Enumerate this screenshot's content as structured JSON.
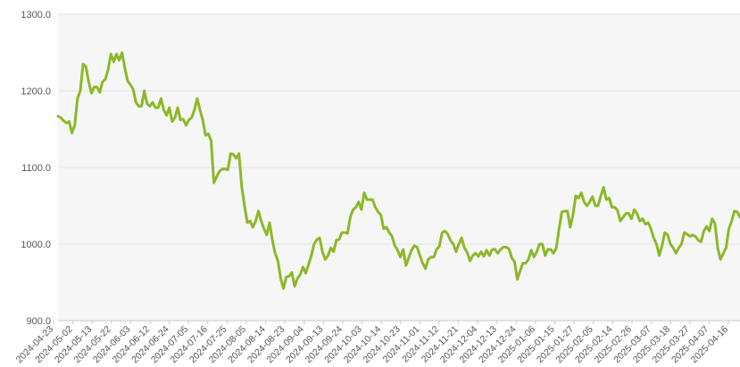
{
  "chart_data": {
    "type": "line",
    "title": "",
    "xlabel": "",
    "ylabel": "",
    "ylim": [
      900,
      1300
    ],
    "y_ticks": [
      "900.0",
      "1000.0",
      "1100.0",
      "1200.0",
      "1300.0"
    ],
    "grid": "horizontal",
    "legend": "none",
    "line_color": "#8cb829",
    "x_tick_labels": [
      "2024-04-23",
      "2024-05-02",
      "2024-05-13",
      "2024-05-22",
      "2024-06-03",
      "2024-06-12",
      "2024-06-24",
      "2024-07-05",
      "2024-07-16",
      "2024-07-25",
      "2024-08-05",
      "2024-08-14",
      "2024-08-23",
      "2024-09-04",
      "2024-09-13",
      "2024-09-24",
      "2024-10-03",
      "2024-10-14",
      "2024-10-23",
      "2024-11-01",
      "2024-11-12",
      "2024-11-21",
      "2024-12-04",
      "2024-12-13",
      "2024-12-24",
      "2025-01-06",
      "2025-01-15",
      "2025-01-27",
      "2025-02-05",
      "2025-02-14",
      "2025-02-26",
      "2025-03-07",
      "2025-03-18",
      "2025-03-27",
      "2025-04-07",
      "2025-04-16"
    ],
    "series": [
      {
        "values": [
          1167,
          1165,
          1161,
          1158,
          1160,
          1145,
          1155,
          1190,
          1200,
          1235,
          1232,
          1212,
          1197,
          1205,
          1205,
          1198,
          1212,
          1215,
          1228,
          1248,
          1238,
          1248,
          1240,
          1250,
          1230,
          1213,
          1208,
          1202,
          1185,
          1180,
          1180,
          1200,
          1183,
          1180,
          1185,
          1178,
          1178,
          1190,
          1175,
          1168,
          1178,
          1160,
          1165,
          1178,
          1162,
          1163,
          1155,
          1162,
          1165,
          1175,
          1190,
          1175,
          1162,
          1142,
          1144,
          1135,
          1080,
          1088,
          1095,
          1098,
          1098,
          1097,
          1118,
          1117,
          1112,
          1118,
          1075,
          1050,
          1028,
          1030,
          1022,
          1030,
          1043,
          1030,
          1020,
          1012,
          1028,
          1005,
          988,
          978,
          955,
          942,
          957,
          958,
          963,
          945,
          955,
          960,
          970,
          962,
          973,
          985,
          1000,
          1006,
          1008,
          990,
          980,
          985,
          995,
          990,
          1005,
          1006,
          1015,
          1015,
          1014,
          1035,
          1045,
          1048,
          1055,
          1045,
          1067,
          1058,
          1058,
          1058,
          1048,
          1042,
          1038,
          1020,
          1022,
          1015,
          1010,
          998,
          992,
          983,
          993,
          972,
          982,
          992,
          998,
          996,
          985,
          975,
          968,
          980,
          983,
          983,
          993,
          997,
          1015,
          1017,
          1013,
          1005,
          1000,
          990,
          1000,
          1008,
          995,
          989,
          978,
          985,
          988,
          984,
          990,
          984,
          992,
          985,
          993,
          993,
          988,
          993,
          996,
          996,
          994,
          982,
          977,
          954,
          965,
          975,
          975,
          980,
          992,
          983,
          990,
          1000,
          1000,
          985,
          993,
          993,
          988,
          995,
          1020,
          1042,
          1043,
          1043,
          1022,
          1038,
          1063,
          1060,
          1067,
          1055,
          1050,
          1055,
          1062,
          1050,
          1050,
          1063,
          1074,
          1058,
          1060,
          1048,
          1048,
          1044,
          1030,
          1035,
          1040,
          1040,
          1033,
          1045,
          1040,
          1030,
          1033,
          1026,
          1028,
          1020,
          1008,
          1000,
          985,
          998,
          1015,
          1012,
          1000,
          995,
          988,
          995,
          1000,
          1015,
          1013,
          1010,
          1012,
          1010,
          1005,
          1003,
          1017,
          1023,
          1017,
          1033,
          1027,
          995,
          980,
          988,
          995,
          1020,
          1030,
          1043,
          1042,
          1035
        ]
      }
    ]
  }
}
